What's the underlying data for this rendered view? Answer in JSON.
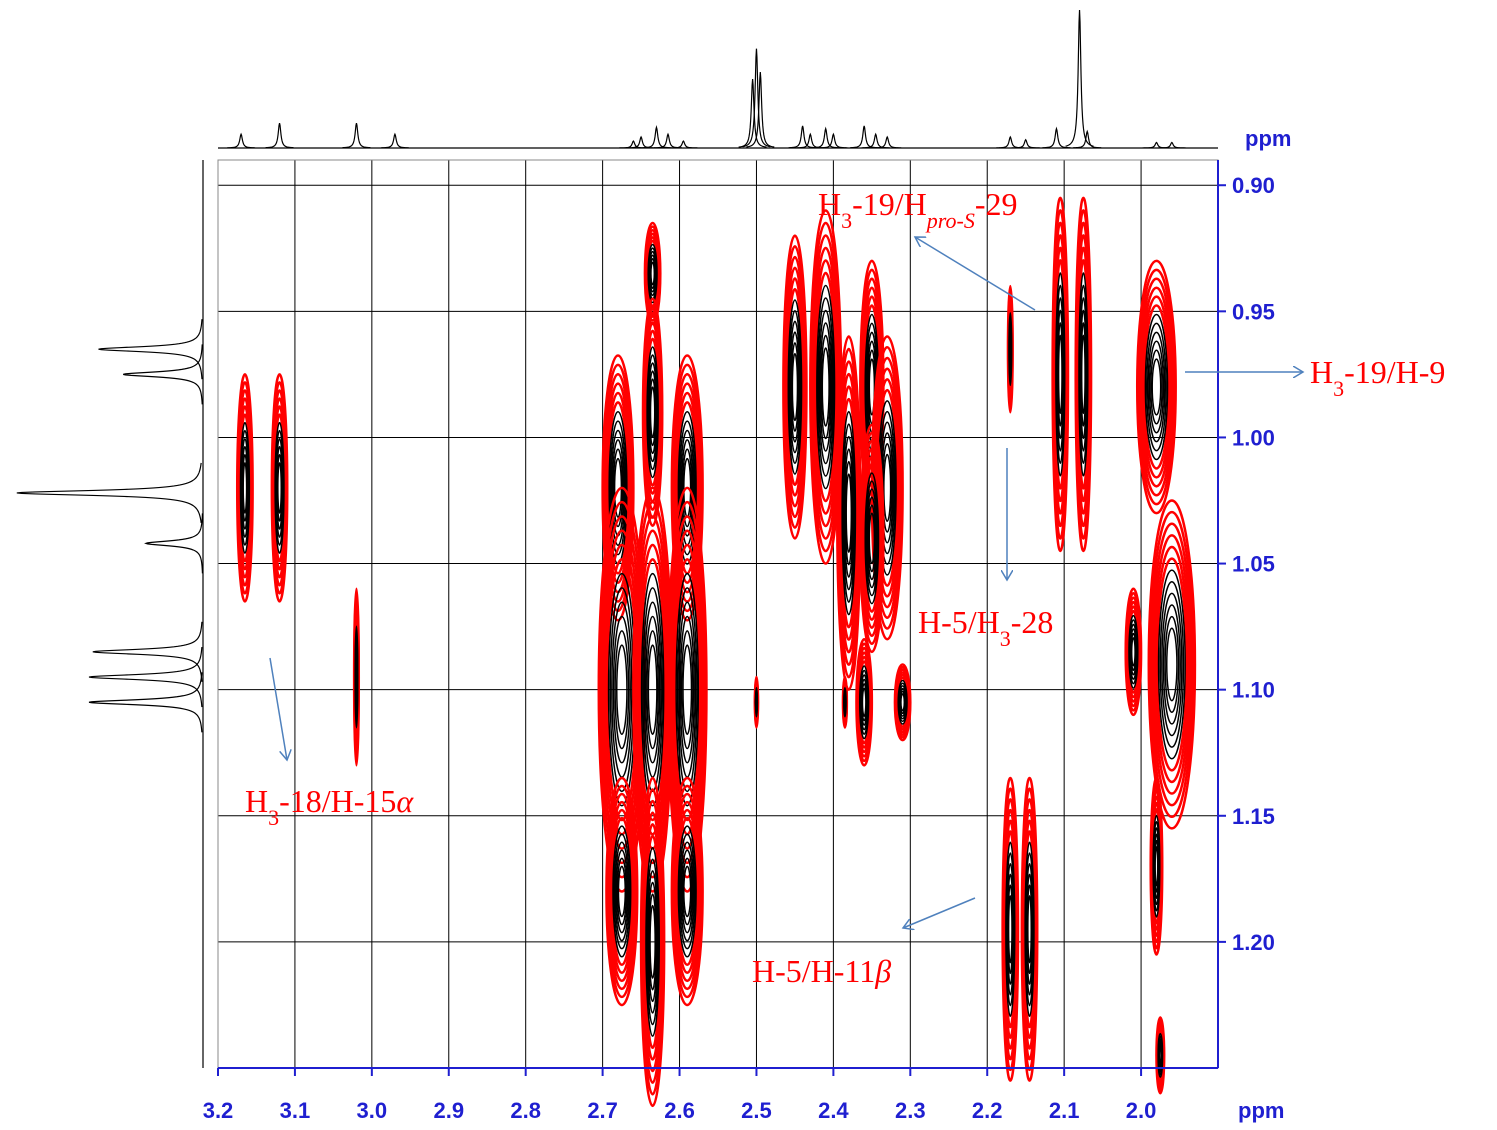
{
  "chart_data": {
    "type": "contour2d",
    "x_label": "ppm",
    "y_label": "ppm",
    "xlim": [
      3.2,
      1.9
    ],
    "ylim": [
      0.89,
      1.25
    ],
    "xticks": [
      3.2,
      3.1,
      {
        "value": 3,
        "label": "3.0"
      },
      2.9,
      2.8,
      2.7,
      2.6,
      2.5,
      2.4,
      2.3,
      2.2,
      2.1,
      {
        "value": 2,
        "label": "2.0"
      }
    ],
    "yticks": [
      {
        "value": 0.9,
        "label": "0.90"
      },
      0.95,
      {
        "value": 1,
        "label": "1.00"
      },
      1.05,
      {
        "value": 1.1,
        "label": "1.10"
      },
      1.15,
      {
        "value": 1.2,
        "label": "1.20"
      }
    ],
    "grid": true,
    "outer_color": "#ff0000",
    "inner_color": "#000000",
    "peaks": [
      {
        "x": 3.165,
        "y": 1.02,
        "xspan": 0.02,
        "yspan": 0.09
      },
      {
        "x": 3.12,
        "y": 1.02,
        "xspan": 0.02,
        "yspan": 0.09
      },
      {
        "x": 3.02,
        "y": 1.095,
        "xspan": 0.006,
        "yspan": 0.07
      },
      {
        "x": 2.68,
        "y": 1.02,
        "xspan": 0.04,
        "yspan": 0.105
      },
      {
        "x": 2.59,
        "y": 1.02,
        "xspan": 0.04,
        "yspan": 0.105
      },
      {
        "x": 2.635,
        "y": 0.935,
        "xspan": 0.02,
        "yspan": 0.04
      },
      {
        "x": 2.635,
        "y": 0.99,
        "xspan": 0.025,
        "yspan": 0.09
      },
      {
        "x": 2.675,
        "y": 1.1,
        "xspan": 0.06,
        "yspan": 0.16
      },
      {
        "x": 2.635,
        "y": 1.1,
        "xspan": 0.05,
        "yspan": 0.16
      },
      {
        "x": 2.59,
        "y": 1.1,
        "xspan": 0.05,
        "yspan": 0.16
      },
      {
        "x": 2.675,
        "y": 1.18,
        "xspan": 0.04,
        "yspan": 0.09
      },
      {
        "x": 2.59,
        "y": 1.18,
        "xspan": 0.04,
        "yspan": 0.09
      },
      {
        "x": 2.635,
        "y": 1.2,
        "xspan": 0.03,
        "yspan": 0.13
      },
      {
        "x": 2.45,
        "y": 0.98,
        "xspan": 0.03,
        "yspan": 0.12
      },
      {
        "x": 2.41,
        "y": 0.98,
        "xspan": 0.04,
        "yspan": 0.14
      },
      {
        "x": 2.38,
        "y": 1.03,
        "xspan": 0.03,
        "yspan": 0.14
      },
      {
        "x": 2.35,
        "y": 0.98,
        "xspan": 0.03,
        "yspan": 0.1
      },
      {
        "x": 2.33,
        "y": 1.02,
        "xspan": 0.04,
        "yspan": 0.12
      },
      {
        "x": 2.35,
        "y": 1.04,
        "xspan": 0.03,
        "yspan": 0.09
      },
      {
        "x": 2.36,
        "y": 1.105,
        "xspan": 0.02,
        "yspan": 0.05
      },
      {
        "x": 2.31,
        "y": 1.105,
        "xspan": 0.02,
        "yspan": 0.03
      },
      {
        "x": 2.385,
        "y": 1.105,
        "xspan": 0.005,
        "yspan": 0.02
      },
      {
        "x": 2.5,
        "y": 1.105,
        "xspan": 0.004,
        "yspan": 0.02
      },
      {
        "x": 2.17,
        "y": 0.965,
        "xspan": 0.006,
        "yspan": 0.05
      },
      {
        "x": 2.105,
        "y": 0.975,
        "xspan": 0.02,
        "yspan": 0.14
      },
      {
        "x": 2.075,
        "y": 0.975,
        "xspan": 0.02,
        "yspan": 0.14
      },
      {
        "x": 1.98,
        "y": 0.98,
        "xspan": 0.05,
        "yspan": 0.1
      },
      {
        "x": 2.01,
        "y": 1.085,
        "xspan": 0.02,
        "yspan": 0.05
      },
      {
        "x": 1.96,
        "y": 1.09,
        "xspan": 0.06,
        "yspan": 0.13
      },
      {
        "x": 2.17,
        "y": 1.195,
        "xspan": 0.02,
        "yspan": 0.12
      },
      {
        "x": 2.145,
        "y": 1.195,
        "xspan": 0.02,
        "yspan": 0.12
      },
      {
        "x": 1.98,
        "y": 1.17,
        "xspan": 0.015,
        "yspan": 0.07
      },
      {
        "x": 1.975,
        "y": 1.245,
        "xspan": 0.01,
        "yspan": 0.03
      }
    ],
    "top_projection": {
      "x": [
        3.17,
        3.12,
        3.02,
        2.97,
        2.66,
        2.65,
        2.63,
        2.615,
        2.595,
        2.505,
        2.5,
        2.495,
        2.44,
        2.43,
        2.41,
        2.4,
        2.36,
        2.345,
        2.33,
        2.17,
        2.15,
        2.11,
        2.08,
        2.07,
        1.98,
        1.96
      ],
      "values": [
        10,
        18,
        18,
        10,
        5,
        8,
        15,
        10,
        5,
        50,
        72,
        55,
        16,
        10,
        14,
        10,
        16,
        10,
        8,
        8,
        6,
        14,
        100,
        12,
        4,
        4
      ]
    },
    "left_projection": {
      "y": [
        0.965,
        0.975,
        1.022,
        1.042,
        1.085,
        1.095,
        1.105
      ],
      "values": [
        55,
        42,
        98,
        30,
        58,
        60,
        60
      ]
    },
    "annotations": [
      [
        {
          "text": "H"
        },
        {
          "text": "3",
          "style": "sub"
        },
        {
          "text": "-19/H"
        },
        {
          "text": "pro-S",
          "style": "italic-sub"
        },
        {
          "text": "-29"
        }
      ],
      [
        {
          "text": "H"
        },
        {
          "text": "3",
          "style": "sub"
        },
        {
          "text": "-19/H-9"
        }
      ],
      [
        {
          "text": "H-5/H"
        },
        {
          "text": "3",
          "style": "sub"
        },
        {
          "text": "-28"
        }
      ],
      [
        {
          "text": "H"
        },
        {
          "text": "3",
          "style": "sub"
        },
        {
          "text": "-18/H-15"
        },
        {
          "text": "α",
          "style": "italic"
        }
      ],
      [
        {
          "text": "H-5/H-11"
        },
        {
          "text": "β",
          "style": "italic"
        }
      ]
    ]
  }
}
